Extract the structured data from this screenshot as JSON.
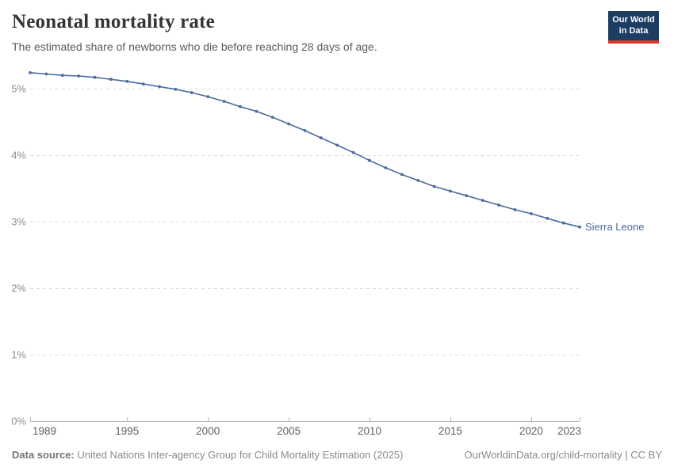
{
  "header": {
    "title": "Neonatal mortality rate",
    "subtitle": "The estimated share of newborns who die before reaching 28 days of age.",
    "logo": {
      "line1": "Our World",
      "line2": "in Data"
    }
  },
  "chart_data": {
    "type": "line",
    "title": "Neonatal mortality rate",
    "xlabel": "",
    "ylabel": "",
    "xlim": [
      1989,
      2023
    ],
    "ylim": [
      0,
      5.3
    ],
    "grid": "horizontal-dashed",
    "legend_position": "end-of-line-label",
    "x_ticks": [
      1989,
      1995,
      2000,
      2005,
      2010,
      2015,
      2020,
      2023
    ],
    "y_ticks": [
      0,
      1,
      2,
      3,
      4,
      5
    ],
    "y_tick_labels": [
      "0%",
      "1%",
      "2%",
      "3%",
      "4%",
      "5%"
    ],
    "series": [
      {
        "name": "Sierra Leone",
        "color": "#4C6A9C",
        "x": [
          1989,
          1990,
          1991,
          1992,
          1993,
          1994,
          1995,
          1996,
          1997,
          1998,
          1999,
          2000,
          2001,
          2002,
          2003,
          2004,
          2005,
          2006,
          2007,
          2008,
          2009,
          2010,
          2011,
          2012,
          2013,
          2014,
          2015,
          2016,
          2017,
          2018,
          2019,
          2020,
          2021,
          2022,
          2023
        ],
        "values": [
          5.24,
          5.22,
          5.2,
          5.19,
          5.17,
          5.14,
          5.11,
          5.07,
          5.03,
          4.99,
          4.94,
          4.88,
          4.81,
          4.73,
          4.66,
          4.57,
          4.47,
          4.37,
          4.26,
          4.15,
          4.04,
          3.92,
          3.81,
          3.71,
          3.62,
          3.53,
          3.46,
          3.39,
          3.32,
          3.25,
          3.18,
          3.12,
          3.05,
          2.98,
          2.92
        ]
      }
    ]
  },
  "colors": {
    "line": "#4C6A9C",
    "gridline": "#dddddd",
    "axis": "#b3b3b3",
    "y_tick_label": "#8e8e8e",
    "x_tick_label": "#5f5f5f",
    "logo_bg": "#1d3d63",
    "logo_bar": "#d7382d"
  },
  "footer": {
    "source_label": "Data source:",
    "source_text": " United Nations Inter-agency Group for Child Mortality Estimation (2025)",
    "credit": "OurWorldinData.org/child-mortality | CC BY"
  }
}
